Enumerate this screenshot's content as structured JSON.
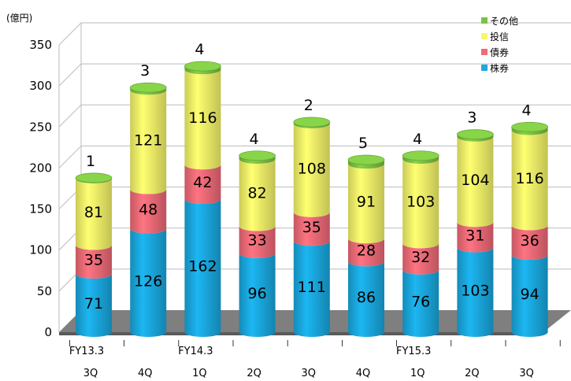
{
  "chart_data": {
    "type": "bar",
    "stacked": true,
    "unit_label": "(億円)",
    "ylim": [
      0,
      350
    ],
    "yticks": [
      0,
      50,
      100,
      150,
      200,
      250,
      300,
      350
    ],
    "grid": true,
    "legend_position": "top-right",
    "period_labels": [
      "FY13.3",
      "",
      "FY14.3",
      "",
      "",
      "",
      "FY15.3",
      "",
      ""
    ],
    "quarter_labels": [
      "3Q",
      "4Q",
      "1Q",
      "2Q",
      "3Q",
      "4Q",
      "1Q",
      "2Q",
      "3Q"
    ],
    "series": [
      {
        "name": "株券",
        "color": "#1aa9e0",
        "values": [
          71,
          126,
          162,
          96,
          111,
          86,
          76,
          103,
          94
        ]
      },
      {
        "name": "債券",
        "color": "#f06b78",
        "values": [
          35,
          48,
          42,
          33,
          35,
          28,
          32,
          31,
          36
        ]
      },
      {
        "name": "投信",
        "color": "#f7f76a",
        "values": [
          81,
          121,
          116,
          82,
          108,
          91,
          103,
          104,
          116
        ]
      },
      {
        "name": "その他",
        "color": "#7cc242",
        "values": [
          1,
          3,
          4,
          4,
          2,
          5,
          4,
          3,
          4
        ]
      }
    ],
    "segment_labels": [
      [
        "71",
        "126",
        "162",
        "96",
        "111",
        "86",
        "76",
        "103",
        "94"
      ],
      [
        "35",
        "48",
        "42",
        "33",
        "35",
        "28",
        "32",
        "31",
        "36"
      ],
      [
        "81",
        "121",
        "116",
        "82",
        "108",
        "91",
        "103",
        "104",
        "116"
      ],
      [
        "1",
        "3",
        "4",
        "4",
        "2",
        "5",
        "4",
        "3",
        "4"
      ]
    ],
    "legend_order": [
      3,
      2,
      1,
      0
    ]
  }
}
